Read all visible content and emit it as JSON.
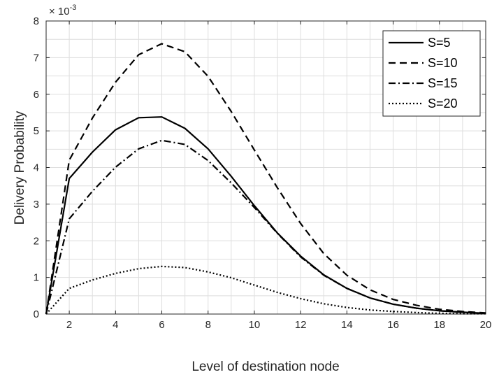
{
  "chart_data": {
    "type": "line",
    "xlabel": "Level of destination node",
    "ylabel": "Delivery Probability",
    "exponent_label": "× 10",
    "exponent_value": "-3",
    "x": [
      1,
      2,
      3,
      4,
      5,
      6,
      7,
      8,
      9,
      10,
      11,
      12,
      13,
      14,
      15,
      16,
      17,
      18,
      19,
      20
    ],
    "xlim": [
      1,
      20
    ],
    "ylim": [
      0,
      8
    ],
    "xticks": [
      2,
      4,
      6,
      8,
      10,
      12,
      14,
      16,
      18,
      20
    ],
    "yticks": [
      0,
      1,
      2,
      3,
      4,
      5,
      6,
      7,
      8
    ],
    "grid": true,
    "legend_position": "top-right",
    "series": [
      {
        "name": "S=5",
        "style": "solid",
        "values": [
          0,
          3.7,
          4.42,
          5.03,
          5.36,
          5.38,
          5.07,
          4.51,
          3.76,
          2.96,
          2.21,
          1.58,
          1.07,
          0.7,
          0.44,
          0.27,
          0.16,
          0.09,
          0.05,
          0.02
        ]
      },
      {
        "name": "S=10",
        "style": "dashed",
        "values": [
          0,
          4.2,
          5.35,
          6.33,
          7.08,
          7.38,
          7.16,
          6.49,
          5.53,
          4.48,
          3.44,
          2.47,
          1.65,
          1.06,
          0.66,
          0.4,
          0.24,
          0.13,
          0.07,
          0.03
        ]
      },
      {
        "name": "S=15",
        "style": "dashdot",
        "values": [
          0,
          2.6,
          3.35,
          4.01,
          4.51,
          4.74,
          4.63,
          4.19,
          3.58,
          2.91,
          2.2,
          1.56,
          1.06,
          0.7,
          0.44,
          0.27,
          0.16,
          0.09,
          0.05,
          0.02
        ]
      },
      {
        "name": "S=20",
        "style": "dotted",
        "values": [
          0,
          0.7,
          0.93,
          1.11,
          1.24,
          1.3,
          1.27,
          1.15,
          0.99,
          0.79,
          0.59,
          0.42,
          0.28,
          0.18,
          0.11,
          0.07,
          0.04,
          0.02,
          0.01,
          0.01
        ]
      }
    ]
  }
}
